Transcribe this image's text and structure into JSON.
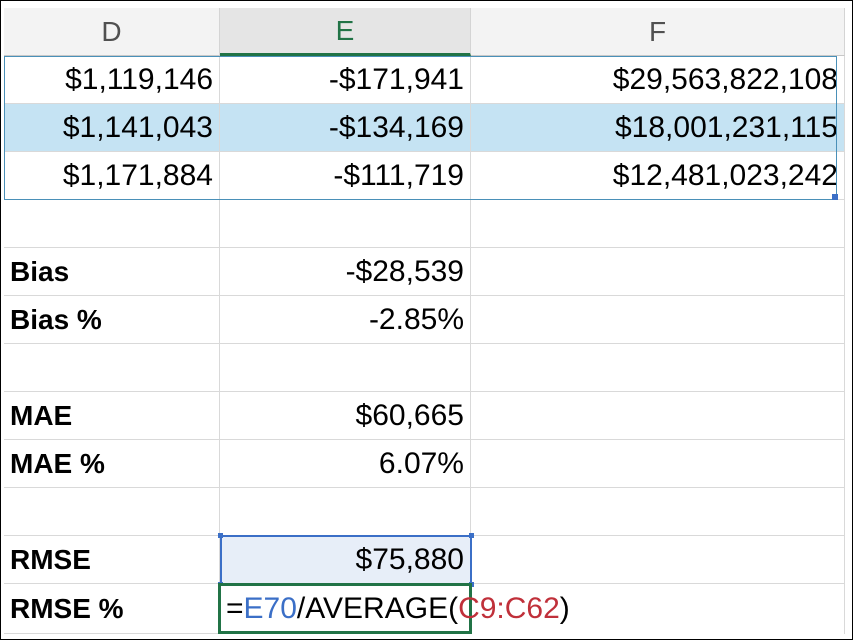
{
  "columns": [
    {
      "id": "D",
      "label": "D"
    },
    {
      "id": "E",
      "label": "E"
    },
    {
      "id": "F",
      "label": "F"
    }
  ],
  "table_rows": [
    {
      "d": "$1,119,146",
      "e": "-$171,941",
      "f": "$29,563,822,108"
    },
    {
      "d": "$1,141,043",
      "e": "-$134,169",
      "f": "$18,001,231,115"
    },
    {
      "d": "$1,171,884",
      "e": "-$111,719",
      "f": "$12,481,023,242"
    }
  ],
  "metrics": {
    "bias_label": "Bias",
    "bias_value": "-$28,539",
    "bias_pct_label": "Bias %",
    "bias_pct_value": "-2.85%",
    "mae_label": "MAE",
    "mae_value": "$60,665",
    "mae_pct_label": "MAE %",
    "mae_pct_value": "6.07%",
    "rmse_label": "RMSE",
    "rmse_value": "$75,880",
    "rmse_pct_label": "RMSE %"
  },
  "formula": {
    "prefix": "=",
    "ref1": "E70",
    "mid": "/AVERAGE(",
    "ref2": "C9:C62",
    "suffix": ")"
  },
  "colors": {
    "selected_header": "#217346",
    "table_band": "#c5e3f3",
    "ref_blue": "#3b6fc7",
    "ref_red": "#c0303a"
  }
}
